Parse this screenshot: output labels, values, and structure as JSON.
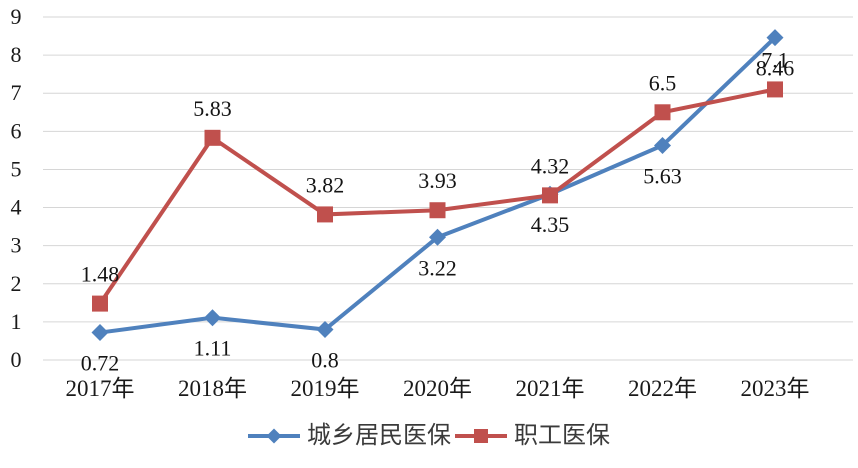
{
  "chart_data": {
    "type": "line",
    "title": "",
    "xlabel": "",
    "ylabel": "",
    "categories": [
      "2017年",
      "2018年",
      "2019年",
      "2020年",
      "2021年",
      "2022年",
      "2023年"
    ],
    "series": [
      {
        "name": "城乡居民医保",
        "values": [
          0.72,
          1.11,
          0.8,
          3.22,
          4.35,
          5.63,
          8.46
        ],
        "labels": [
          "0.72",
          "1.11",
          "0.8",
          "3.22",
          "4.35",
          "5.63",
          "8.46"
        ],
        "color": "#4F81BD",
        "marker": "diamond",
        "label_placement": "below"
      },
      {
        "name": "职工医保",
        "values": [
          1.48,
          5.83,
          3.82,
          3.93,
          4.32,
          6.5,
          7.1
        ],
        "labels": [
          "1.48",
          "5.83",
          "3.82",
          "3.93",
          "4.32",
          "6.5",
          "7.1"
        ],
        "color": "#C0504D",
        "marker": "square",
        "label_placement": "above"
      }
    ],
    "y_axis": {
      "min": 0,
      "max": 9,
      "step": 1,
      "ticks": [
        "0",
        "1",
        "2",
        "3",
        "4",
        "5",
        "6",
        "7",
        "8",
        "9"
      ]
    },
    "grid": "horizontal",
    "gridline_color": "#d6d6d6",
    "label_color": "#141414",
    "legend_position": "bottom"
  }
}
